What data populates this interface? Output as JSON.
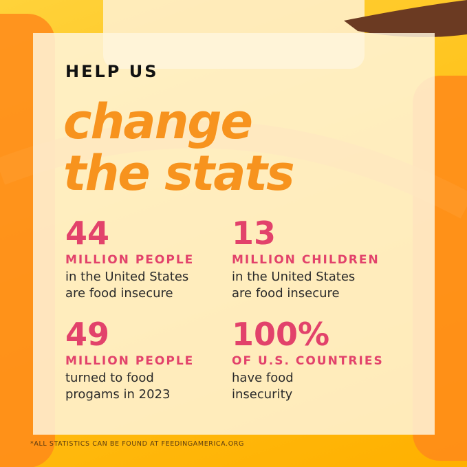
{
  "header": {
    "kicker": "HELP US",
    "headline": [
      "change",
      "the stats"
    ]
  },
  "stats": [
    {
      "number": "44",
      "label": "MILLION PEOPLE",
      "description": [
        "in the United States",
        "are food insecure"
      ]
    },
    {
      "number": "13",
      "label": "MILLION CHILDREN",
      "description": [
        "in the United States",
        "are food insecure"
      ]
    },
    {
      "number": "49",
      "label": "MILLION PEOPLE",
      "description": [
        "turned to food",
        "progams in 2023"
      ]
    },
    {
      "number": "100%",
      "label": "OF U.S. COUNTRIES",
      "description": [
        "have food",
        "insecurity"
      ]
    }
  ],
  "footnote": "*ALL STATISTICS CAN BE FOUND AT FEEDINGAMERICA.ORG"
}
